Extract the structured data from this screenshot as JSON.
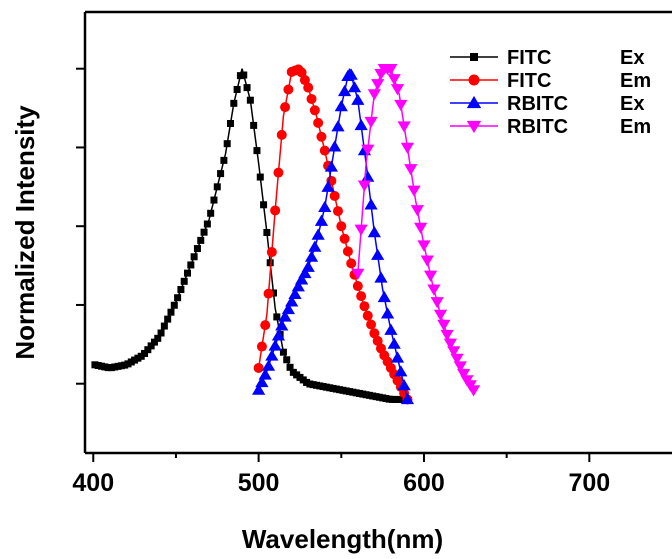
{
  "chart_data": {
    "type": "scatter",
    "title": "",
    "xlabel": "Wavelength(nm)",
    "ylabel": "Normalized Intensity",
    "xlim": [
      395,
      750
    ],
    "ylim": [
      -0.22,
      1.18
    ],
    "xticks": [
      400,
      500,
      600,
      700
    ],
    "xtick_labels": [
      "400",
      "500",
      "600",
      "700"
    ],
    "yticks": [
      0.0,
      0.25,
      0.5,
      0.75,
      1.0
    ],
    "ytick_labels": [
      "",
      "",
      "",
      "",
      ""
    ],
    "grid": false,
    "legend_position": "top-right",
    "series": [
      {
        "name": "FITC",
        "tag": "Ex",
        "color": "#000000",
        "marker": "square",
        "x": [
          401,
          410,
          420,
          430,
          440,
          450,
          460,
          470,
          480,
          485,
          490,
          495,
          500,
          505,
          510,
          515,
          520,
          530,
          540,
          550,
          560,
          570,
          580,
          590
        ],
        "y": [
          0.06,
          0.05,
          0.06,
          0.09,
          0.15,
          0.26,
          0.39,
          0.52,
          0.73,
          0.89,
          1.0,
          0.9,
          0.7,
          0.48,
          0.24,
          0.1,
          0.04,
          0.0,
          -0.01,
          -0.02,
          -0.03,
          -0.04,
          -0.05,
          -0.05
        ]
      },
      {
        "name": "FITC",
        "tag": "Em",
        "color": "#ff0000",
        "marker": "circle",
        "x": [
          500,
          505,
          510,
          515,
          520,
          525,
          530,
          535,
          540,
          545,
          550,
          555,
          560,
          565,
          570,
          575,
          580,
          585,
          590
        ],
        "y": [
          0.05,
          0.22,
          0.55,
          0.85,
          0.99,
          1.0,
          0.94,
          0.85,
          0.74,
          0.62,
          0.5,
          0.4,
          0.31,
          0.23,
          0.16,
          0.1,
          0.05,
          0.0,
          -0.05
        ]
      },
      {
        "name": "RBITC",
        "tag": "Ex",
        "color": "#0000ff",
        "marker": "triangle-up",
        "x": [
          500,
          505,
          510,
          515,
          520,
          525,
          530,
          535,
          540,
          545,
          550,
          555,
          560,
          565,
          570,
          575,
          580,
          585,
          590
        ],
        "y": [
          -0.02,
          0.04,
          0.12,
          0.2,
          0.26,
          0.32,
          0.37,
          0.45,
          0.56,
          0.72,
          0.88,
          1.0,
          0.9,
          0.7,
          0.48,
          0.3,
          0.17,
          0.06,
          -0.05
        ]
      },
      {
        "name": "RBITC",
        "tag": "Em",
        "color": "#ff00ff",
        "marker": "triangle-down",
        "x": [
          560,
          565,
          570,
          575,
          580,
          585,
          590,
          595,
          600,
          605,
          610,
          615,
          620,
          625,
          630
        ],
        "y": [
          0.35,
          0.7,
          0.92,
          1.0,
          1.0,
          0.92,
          0.75,
          0.58,
          0.44,
          0.32,
          0.22,
          0.14,
          0.08,
          0.02,
          -0.02
        ]
      }
    ]
  }
}
